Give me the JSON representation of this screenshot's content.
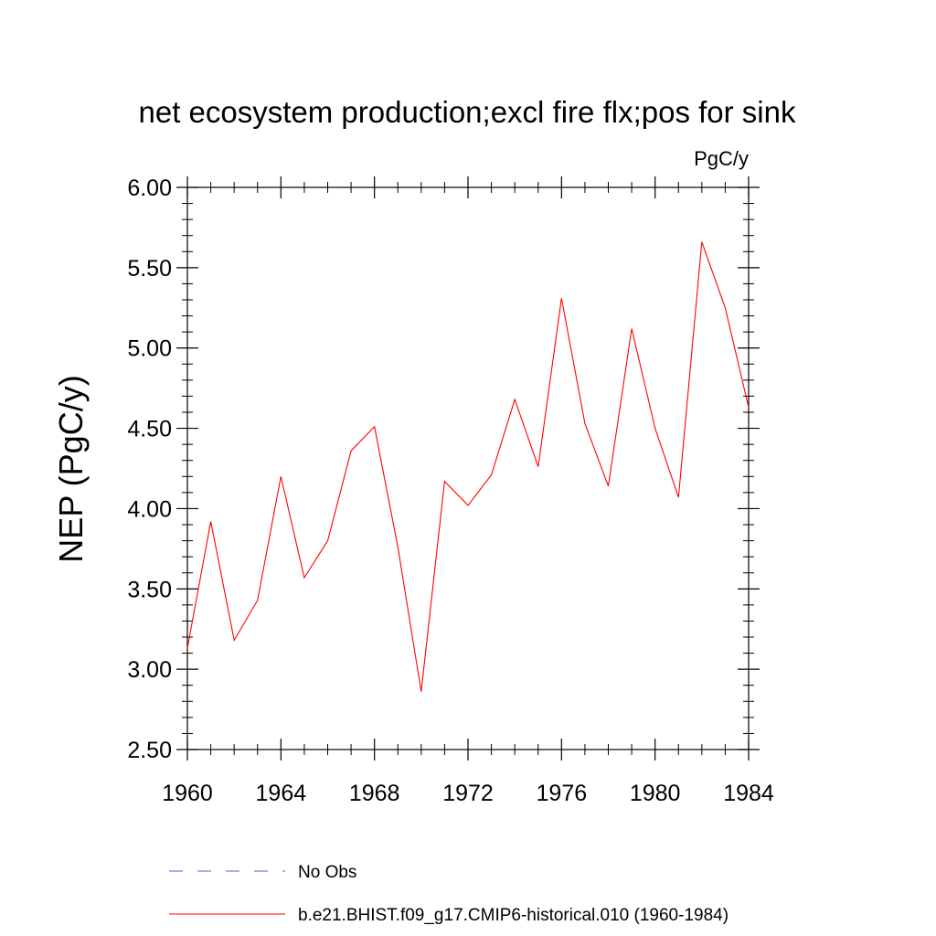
{
  "chart_data": {
    "type": "line",
    "title": "net ecosystem production;excl fire flx;pos for sink",
    "units_label": "PgC/y",
    "ylabel": "NEP  (PgC/y)",
    "xlabel": "",
    "xlim": [
      1960,
      1984
    ],
    "ylim": [
      2.5,
      6.0
    ],
    "x_ticks": [
      "1960",
      "1964",
      "1968",
      "1972",
      "1976",
      "1980",
      "1984"
    ],
    "y_ticks": [
      "2.50",
      "3.00",
      "3.50",
      "4.00",
      "4.50",
      "5.00",
      "5.50",
      "6.00"
    ],
    "grid": false,
    "legend_position": "bottom",
    "series": [
      {
        "name": "b.e21.BHIST.f09_g17.CMIP6-historical.010 (1960-1984)",
        "color": "#ff0000",
        "style": "solid",
        "x": [
          1960,
          1961,
          1962,
          1963,
          1964,
          1965,
          1966,
          1967,
          1968,
          1969,
          1970,
          1971,
          1972,
          1973,
          1974,
          1975,
          1976,
          1977,
          1978,
          1979,
          1980,
          1981,
          1982,
          1983,
          1984
        ],
        "values": [
          3.13,
          3.92,
          3.18,
          3.43,
          4.2,
          3.57,
          3.8,
          4.36,
          4.51,
          3.76,
          2.86,
          4.17,
          4.02,
          4.21,
          4.68,
          4.26,
          5.31,
          4.53,
          4.14,
          5.12,
          4.5,
          4.07,
          5.66,
          5.25,
          4.63
        ]
      }
    ],
    "legend": [
      {
        "label": "No Obs",
        "color": "#6a5acd",
        "style": "dashed"
      },
      {
        "label": "b.e21.BHIST.f09_g17.CMIP6-historical.010 (1960-1984)",
        "color": "#ff0000",
        "style": "solid"
      }
    ]
  }
}
